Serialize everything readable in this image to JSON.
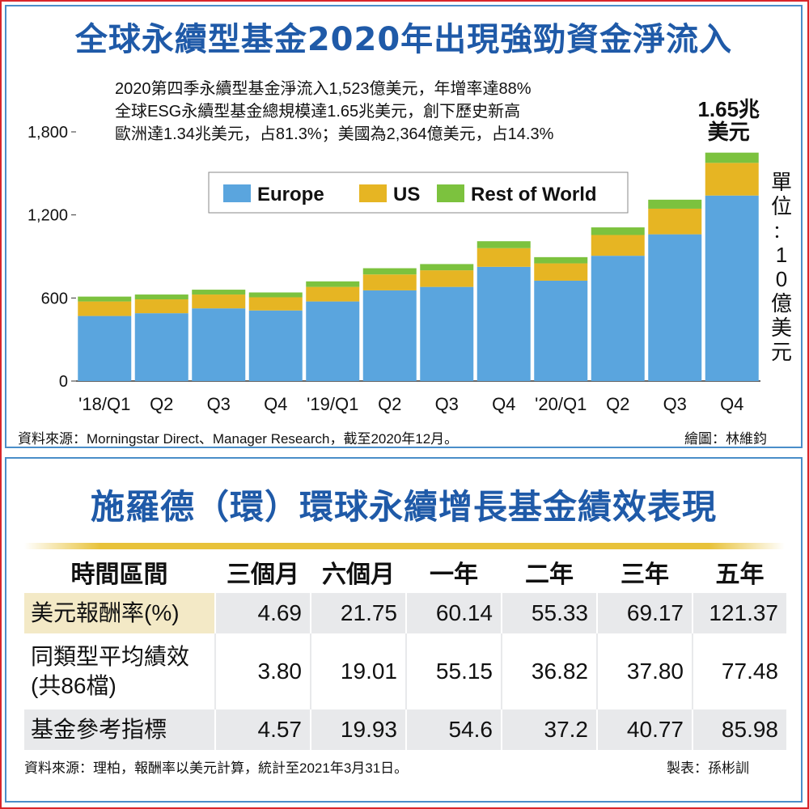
{
  "chart_data": {
    "type": "bar",
    "stacked": true,
    "title": "全球永續型基金2020年出現強勁資金淨流入",
    "notes": [
      "2020第四季永續型基金淨流入1,523億美元，年增率達88%",
      "全球ESG永續型基金總規模達1.65兆美元，創下歷史新高",
      "歐洲達1.34兆美元，占81.3%；美國為2,364億美元，占14.3%"
    ],
    "annotation": "1.65兆美元",
    "unit_label": "單位：10億美元",
    "categories": [
      "'18/Q1",
      "Q2",
      "Q3",
      "Q4",
      "'19/Q1",
      "Q2",
      "Q3",
      "Q4",
      "'20/Q1",
      "Q2",
      "Q3",
      "Q4"
    ],
    "series": [
      {
        "name": "Europe",
        "color": "#5aa5de",
        "values": [
          470,
          490,
          525,
          510,
          575,
          655,
          680,
          825,
          725,
          905,
          1060,
          1340
        ]
      },
      {
        "name": "US",
        "color": "#e6b523",
        "values": [
          105,
          100,
          100,
          95,
          105,
          115,
          120,
          135,
          125,
          150,
          185,
          236
        ]
      },
      {
        "name": "Rest of World",
        "color": "#7cc23e",
        "values": [
          35,
          35,
          35,
          35,
          40,
          45,
          45,
          50,
          45,
          55,
          65,
          74
        ]
      }
    ],
    "ylim": [
      0,
      1800
    ],
    "yticks": [
      0,
      600,
      1200,
      1800
    ],
    "ytick_labels": [
      "0",
      "600",
      "1,200",
      "1,800"
    ],
    "legend_position": "top-left",
    "grid": false,
    "source": "資料來源：Morningstar Direct、Manager Research，截至2020年12月。",
    "credit": "繪圖：林維鈞"
  },
  "table": {
    "title": "施羅德（環）環球永續增長基金績效表現",
    "headers": [
      "時間區間",
      "三個月",
      "六個月",
      "一年",
      "二年",
      "三年",
      "五年"
    ],
    "rows": [
      {
        "label": "美元報酬率(%)",
        "values": [
          "4.69",
          "21.75",
          "60.14",
          "55.33",
          "69.17",
          "121.37"
        ]
      },
      {
        "label_lines": [
          "同類型平均績效",
          "(共86檔)"
        ],
        "values": [
          "3.80",
          "19.01",
          "55.15",
          "36.82",
          "37.80",
          "77.48"
        ]
      },
      {
        "label": "基金參考指標",
        "values": [
          "4.57",
          "19.93",
          "54.6",
          "37.2",
          "40.77",
          "85.98"
        ]
      }
    ],
    "source": "資料來源：理柏，報酬率以美元計算，統計至2021年3月31日。",
    "credit": "製表：孫彬訓"
  }
}
